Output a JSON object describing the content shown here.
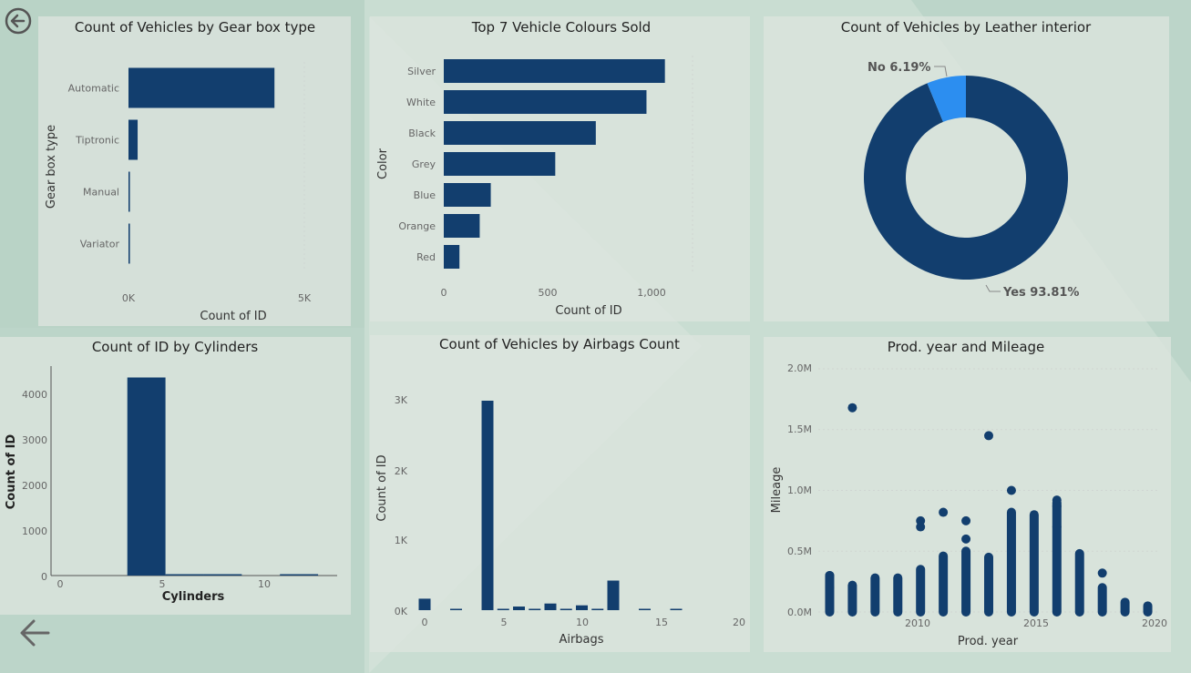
{
  "colors": {
    "bar": "#123e6e",
    "accent": "#2c8ef0",
    "background": "#bcd5c9",
    "panel": "#dce4de"
  },
  "nav": {
    "back_top_icon": "circle-arrow-left-icon",
    "back_bottom_icon": "arrow-left-icon"
  },
  "charts": {
    "gearbox": {
      "title": "Count of Vehicles by Gear box type",
      "xlabel": "Count of ID",
      "ylabel": "Gear box type",
      "xticks": [
        "0K",
        "5K"
      ]
    },
    "colors": {
      "title": "Top 7 Vehicle Colours Sold",
      "xlabel": "Count of ID",
      "ylabel": "Color",
      "xticks": [
        "0",
        "500",
        "1,000"
      ]
    },
    "leather": {
      "title": "Count of Vehicles by Leather interior",
      "labels": [
        "Yes 93.81%",
        "No 6.19%"
      ]
    },
    "cylinders": {
      "title": "Count of ID by Cylinders",
      "xlabel": "Cylinders",
      "ylabel": "Count of ID",
      "xticks": [
        "0",
        "5",
        "10"
      ],
      "yticks": [
        "0",
        "1000",
        "2000",
        "3000",
        "4000"
      ]
    },
    "airbags": {
      "title": "Count of Vehicles by Airbags Count",
      "xlabel": "Airbags",
      "ylabel": "Count of ID",
      "xticks": [
        "0",
        "5",
        "10",
        "15",
        "20"
      ],
      "yticks": [
        "0K",
        "1K",
        "2K",
        "3K"
      ]
    },
    "prodyear": {
      "title": "Prod. year and Mileage",
      "xlabel": "Prod. year",
      "ylabel": "Mileage",
      "xticks": [
        "2010",
        "2015",
        "2020"
      ],
      "yticks": [
        "0.0M",
        "0.5M",
        "1.0M",
        "1.5M",
        "2.0M"
      ]
    }
  },
  "chart_data": [
    {
      "type": "bar",
      "orientation": "horizontal",
      "title": "Count of Vehicles by Gear box type",
      "categories": [
        "Automatic",
        "Tiptronic",
        "Manual",
        "Variator"
      ],
      "values": [
        4150,
        260,
        40,
        40
      ],
      "xlabel": "Count of ID",
      "ylabel": "Gear box type",
      "xlim": [
        0,
        5000
      ]
    },
    {
      "type": "bar",
      "orientation": "horizontal",
      "title": "Top 7 Vehicle Colours Sold",
      "categories": [
        "Silver",
        "White",
        "Black",
        "Grey",
        "Blue",
        "Orange",
        "Red"
      ],
      "values": [
        1200,
        1100,
        825,
        605,
        255,
        195,
        85
      ],
      "xlabel": "Count of ID",
      "ylabel": "Color",
      "xlim": [
        0,
        1350
      ]
    },
    {
      "type": "pie",
      "title": "Count of Vehicles by Leather interior",
      "categories": [
        "Yes",
        "No"
      ],
      "values": [
        93.81,
        6.19
      ]
    },
    {
      "type": "bar",
      "title": "Count of ID by Cylinders",
      "x": [
        4,
        6,
        8,
        12
      ],
      "values": [
        4350,
        30,
        10,
        10
      ],
      "xlabel": "Cylinders",
      "ylabel": "Count of ID",
      "xlim": [
        -1,
        14
      ],
      "ylim": [
        0,
        4600
      ]
    },
    {
      "type": "bar",
      "title": "Count of Vehicles by Airbags Count",
      "x": [
        0,
        2,
        4,
        5,
        6,
        7,
        8,
        9,
        10,
        11,
        12,
        14,
        16
      ],
      "values": [
        190,
        10,
        3470,
        10,
        60,
        15,
        110,
        20,
        80,
        15,
        490,
        10,
        10
      ],
      "xlabel": "Airbags",
      "ylabel": "Count of ID",
      "xlim": [
        -1,
        21
      ],
      "ylim": [
        0,
        3600
      ]
    },
    {
      "type": "scatter",
      "title": "Prod. year and Mileage",
      "xlabel": "Prod. year",
      "ylabel": "Mileage",
      "xlim": [
        2005.5,
        2020.5
      ],
      "ylim": [
        0,
        2000000
      ],
      "columns": [
        {
          "x": 2006,
          "min": 0,
          "max": 300000
        },
        {
          "x": 2007,
          "min": 0,
          "max": 220000
        },
        {
          "x": 2008,
          "min": 0,
          "max": 280000
        },
        {
          "x": 2009,
          "min": 0,
          "max": 280000
        },
        {
          "x": 2010,
          "min": 0,
          "max": 350000
        },
        {
          "x": 2011,
          "min": 0,
          "max": 460000
        },
        {
          "x": 2012,
          "min": 0,
          "max": 500000
        },
        {
          "x": 2013,
          "min": 0,
          "max": 450000
        },
        {
          "x": 2014,
          "min": 0,
          "max": 820000
        },
        {
          "x": 2015,
          "min": 0,
          "max": 800000
        },
        {
          "x": 2016,
          "min": 0,
          "max": 900000
        },
        {
          "x": 2017,
          "min": 0,
          "max": 480000
        },
        {
          "x": 2018,
          "min": 0,
          "max": 200000
        },
        {
          "x": 2019,
          "min": 0,
          "max": 80000
        },
        {
          "x": 2020,
          "min": 0,
          "max": 50000
        }
      ],
      "points": [
        [
          2007,
          1680000
        ],
        [
          2013,
          1450000
        ],
        [
          2011,
          820000
        ],
        [
          2010,
          750000
        ],
        [
          2010,
          700000
        ],
        [
          2012,
          750000
        ],
        [
          2012,
          600000
        ],
        [
          2014,
          1000000
        ],
        [
          2016,
          920000
        ],
        [
          2016,
          870000
        ],
        [
          2016,
          700000
        ],
        [
          2018,
          320000
        ],
        [
          2006,
          300000
        ],
        [
          2006,
          200000
        ]
      ]
    }
  ]
}
